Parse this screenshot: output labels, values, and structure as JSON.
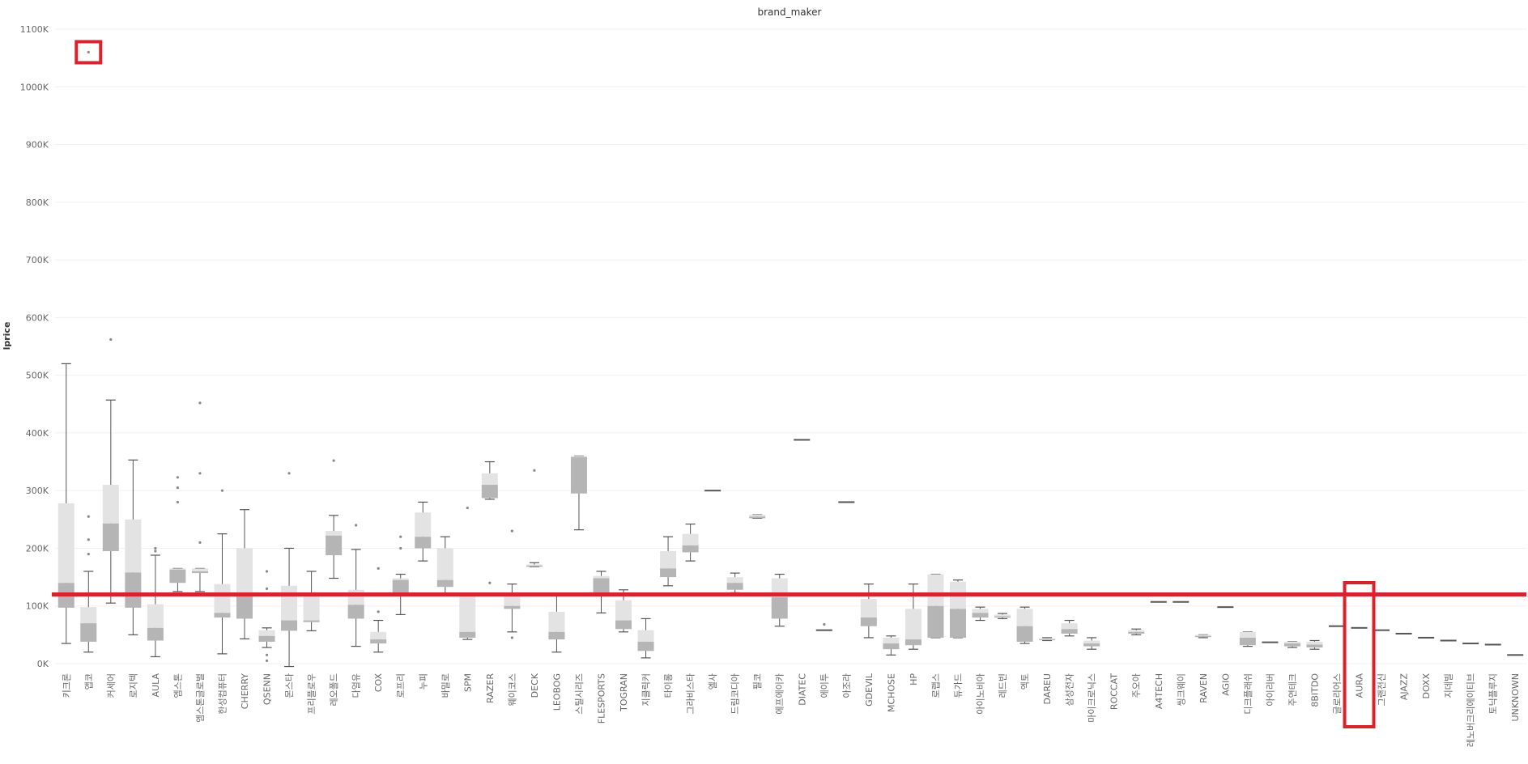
{
  "chart_data": {
    "type": "box",
    "title": "brand_maker",
    "ylabel": "lprice",
    "ylim": [
      0,
      1100000
    ],
    "yticks": [
      0,
      100000,
      200000,
      300000,
      400000,
      500000,
      600000,
      700000,
      800000,
      900000,
      1000000,
      1100000
    ],
    "ytick_labels": [
      "0K",
      "100K",
      "200K",
      "300K",
      "400K",
      "500K",
      "600K",
      "700K",
      "800K",
      "900K",
      "1000K",
      "1100K"
    ],
    "grid": true,
    "reference_line": 120000,
    "highlight_categories": [
      "AURA"
    ],
    "highlight_outlier_value": 1060000,
    "colors": {
      "box_light": "#e3e3e3",
      "box_dark": "#b5b5b5",
      "whisker": "#555555",
      "grid": "#f0f0f0",
      "highlight": "#d6242f",
      "point": "#888888"
    },
    "categories": [
      {
        "name": "키크론",
        "min": 35000,
        "q1": 97000,
        "median": 140000,
        "q3": 278000,
        "max": 520000,
        "outliers": []
      },
      {
        "name": "앱코",
        "min": 20000,
        "q1": 38000,
        "median": 70000,
        "q3": 98000,
        "max": 160000,
        "outliers": [
          190000,
          215000,
          255000,
          1060000
        ]
      },
      {
        "name": "커세어",
        "min": 105000,
        "q1": 195000,
        "median": 243000,
        "q3": 310000,
        "max": 457000,
        "outliers": [
          562000
        ]
      },
      {
        "name": "로지텍",
        "min": 50000,
        "q1": 97000,
        "median": 158000,
        "q3": 250000,
        "max": 353000,
        "outliers": []
      },
      {
        "name": "AULA",
        "min": 12000,
        "q1": 40000,
        "median": 62000,
        "q3": 103000,
        "max": 188000,
        "outliers": [
          195000,
          200000
        ]
      },
      {
        "name": "엠스톤",
        "min": 125000,
        "q1": 140000,
        "median": 163000,
        "q3": 165000,
        "max": 165000,
        "outliers": [
          280000,
          305000,
          323000
        ]
      },
      {
        "name": "엠스톤글로벌",
        "min": 125000,
        "q1": 157000,
        "median": 160000,
        "q3": 165000,
        "max": 165000,
        "outliers": [
          210000,
          330000,
          452000
        ]
      },
      {
        "name": "한성컴퓨터",
        "min": 17000,
        "q1": 80000,
        "median": 88000,
        "q3": 138000,
        "max": 225000,
        "outliers": [
          300000
        ]
      },
      {
        "name": "CHERRY",
        "min": 43000,
        "q1": 78000,
        "median": 118000,
        "q3": 200000,
        "max": 267000,
        "outliers": []
      },
      {
        "name": "QSENN",
        "min": 28000,
        "q1": 38000,
        "median": 48000,
        "q3": 58000,
        "max": 62000,
        "outliers": [
          5000,
          15000,
          130000,
          160000
        ]
      },
      {
        "name": "몬스타",
        "min": -5000,
        "q1": 57000,
        "median": 75000,
        "q3": 135000,
        "max": 200000,
        "outliers": [
          330000
        ]
      },
      {
        "name": "프리플로우",
        "min": 57000,
        "q1": 72000,
        "median": 75000,
        "q3": 120000,
        "max": 160000,
        "outliers": []
      },
      {
        "name": "레오폴드",
        "min": 148000,
        "q1": 188000,
        "median": 222000,
        "q3": 230000,
        "max": 257000,
        "outliers": [
          352000
        ]
      },
      {
        "name": "다얼유",
        "min": 30000,
        "q1": 78000,
        "median": 102000,
        "q3": 128000,
        "max": 198000,
        "outliers": [
          240000
        ]
      },
      {
        "name": "COX",
        "min": 20000,
        "q1": 35000,
        "median": 42000,
        "q3": 55000,
        "max": 75000,
        "outliers": [
          90000,
          165000
        ]
      },
      {
        "name": "로프리",
        "min": 85000,
        "q1": 118000,
        "median": 145000,
        "q3": 148000,
        "max": 155000,
        "outliers": [
          200000,
          220000
        ]
      },
      {
        "name": "누피",
        "min": 178000,
        "q1": 200000,
        "median": 220000,
        "q3": 262000,
        "max": 280000,
        "outliers": []
      },
      {
        "name": "바밀로",
        "min": 120000,
        "q1": 133000,
        "median": 145000,
        "q3": 200000,
        "max": 220000,
        "outliers": []
      },
      {
        "name": "SPM",
        "min": 42000,
        "q1": 45000,
        "median": 55000,
        "q3": 118000,
        "max": 118000,
        "outliers": [
          270000
        ]
      },
      {
        "name": "RAZER",
        "min": 285000,
        "q1": 287000,
        "median": 310000,
        "q3": 330000,
        "max": 350000,
        "outliers": [
          140000
        ]
      },
      {
        "name": "웨이코스",
        "min": 55000,
        "q1": 95000,
        "median": 100000,
        "q3": 120000,
        "max": 138000,
        "outliers": [
          45000,
          230000
        ]
      },
      {
        "name": "DECK",
        "min": 168000,
        "q1": 168000,
        "median": 170000,
        "q3": 172000,
        "max": 175000,
        "outliers": [
          335000
        ]
      },
      {
        "name": "LEOBOG",
        "min": 20000,
        "q1": 42000,
        "median": 55000,
        "q3": 90000,
        "max": 120000,
        "outliers": []
      },
      {
        "name": "스틸시리즈",
        "min": 232000,
        "q1": 295000,
        "median": 358000,
        "q3": 360000,
        "max": 360000,
        "outliers": []
      },
      {
        "name": "FLESPORTS",
        "min": 88000,
        "q1": 120000,
        "median": 148000,
        "q3": 152000,
        "max": 160000,
        "outliers": []
      },
      {
        "name": "TOGRAN",
        "min": 55000,
        "q1": 60000,
        "median": 75000,
        "q3": 110000,
        "max": 128000,
        "outliers": []
      },
      {
        "name": "지클릭커",
        "min": 10000,
        "q1": 22000,
        "median": 38000,
        "q3": 58000,
        "max": 78000,
        "outliers": []
      },
      {
        "name": "타이롱",
        "min": 135000,
        "q1": 150000,
        "median": 165000,
        "q3": 195000,
        "max": 220000,
        "outliers": []
      },
      {
        "name": "그라비스타",
        "min": 178000,
        "q1": 193000,
        "median": 205000,
        "q3": 225000,
        "max": 242000,
        "outliers": []
      },
      {
        "name": "엘사",
        "min": 300000,
        "q1": 300000,
        "median": 300000,
        "q3": 300000,
        "max": 300000,
        "outliers": []
      },
      {
        "name": "드림코디아",
        "min": 123000,
        "q1": 128000,
        "median": 140000,
        "q3": 150000,
        "max": 157000,
        "outliers": []
      },
      {
        "name": "필코",
        "min": 252000,
        "q1": 252000,
        "median": 255000,
        "q3": 258000,
        "max": 258000,
        "outliers": []
      },
      {
        "name": "에프에이카",
        "min": 65000,
        "q1": 78000,
        "median": 115000,
        "q3": 148000,
        "max": 155000,
        "outliers": []
      },
      {
        "name": "DIATEC",
        "min": 388000,
        "q1": 388000,
        "median": 388000,
        "q3": 388000,
        "max": 388000,
        "outliers": []
      },
      {
        "name": "에이투",
        "min": 58000,
        "q1": 58000,
        "median": 58000,
        "q3": 58000,
        "max": 58000,
        "outliers": [
          68000
        ]
      },
      {
        "name": "아조라",
        "min": 280000,
        "q1": 280000,
        "median": 280000,
        "q3": 280000,
        "max": 280000,
        "outliers": []
      },
      {
        "name": "GDEVIL",
        "min": 45000,
        "q1": 65000,
        "median": 80000,
        "q3": 112000,
        "max": 138000,
        "outliers": []
      },
      {
        "name": "MCHOSE",
        "min": 15000,
        "q1": 25000,
        "median": 35000,
        "q3": 45000,
        "max": 48000,
        "outliers": []
      },
      {
        "name": "HP",
        "min": 25000,
        "q1": 32000,
        "median": 42000,
        "q3": 95000,
        "max": 138000,
        "outliers": []
      },
      {
        "name": "로랩스",
        "min": 45000,
        "q1": 45000,
        "median": 100000,
        "q3": 155000,
        "max": 155000,
        "outliers": []
      },
      {
        "name": "듀가드",
        "min": 45000,
        "q1": 45000,
        "median": 95000,
        "q3": 142000,
        "max": 145000,
        "outliers": []
      },
      {
        "name": "아이노비아",
        "min": 75000,
        "q1": 80000,
        "median": 88000,
        "q3": 95000,
        "max": 98000,
        "outliers": []
      },
      {
        "name": "레드빈",
        "min": 78000,
        "q1": 80000,
        "median": 82000,
        "q3": 85000,
        "max": 87000,
        "outliers": []
      },
      {
        "name": "엑토",
        "min": 35000,
        "q1": 38000,
        "median": 65000,
        "q3": 95000,
        "max": 98000,
        "outliers": []
      },
      {
        "name": "DAREU",
        "min": 40000,
        "q1": 41000,
        "median": 42000,
        "q3": 44000,
        "max": 45000,
        "outliers": []
      },
      {
        "name": "삼성전자",
        "min": 48000,
        "q1": 52000,
        "median": 60000,
        "q3": 70000,
        "max": 75000,
        "outliers": []
      },
      {
        "name": "마이크로닉스",
        "min": 25000,
        "q1": 30000,
        "median": 35000,
        "q3": 40000,
        "max": 45000,
        "outliers": []
      },
      {
        "name": "ROCCAT",
        "min": 118000,
        "q1": 118000,
        "median": 118000,
        "q3": 118000,
        "max": 118000,
        "outliers": []
      },
      {
        "name": "주오아",
        "min": 50000,
        "q1": 52000,
        "median": 55000,
        "q3": 58000,
        "max": 60000,
        "outliers": []
      },
      {
        "name": "A4TECH",
        "min": 107000,
        "q1": 107000,
        "median": 107000,
        "q3": 107000,
        "max": 107000,
        "outliers": []
      },
      {
        "name": "씽크웨이",
        "min": 107000,
        "q1": 107000,
        "median": 107000,
        "q3": 107000,
        "max": 107000,
        "outliers": []
      },
      {
        "name": "RAVEN",
        "min": 45000,
        "q1": 46000,
        "median": 48000,
        "q3": 50000,
        "max": 50000,
        "outliers": []
      },
      {
        "name": "AGIO",
        "min": 98000,
        "q1": 98000,
        "median": 98000,
        "q3": 98000,
        "max": 98000,
        "outliers": []
      },
      {
        "name": "디크플래쉬",
        "min": 30000,
        "q1": 32000,
        "median": 45000,
        "q3": 55000,
        "max": 55000,
        "outliers": []
      },
      {
        "name": "아이리버",
        "min": 37000,
        "q1": 37000,
        "median": 37000,
        "q3": 37000,
        "max": 37000,
        "outliers": []
      },
      {
        "name": "주연테크",
        "min": 28000,
        "q1": 30000,
        "median": 35000,
        "q3": 38000,
        "max": 38000,
        "outliers": []
      },
      {
        "name": "8BITDO",
        "min": 25000,
        "q1": 28000,
        "median": 33000,
        "q3": 38000,
        "max": 40000,
        "outliers": []
      },
      {
        "name": "글로리어스",
        "min": 65000,
        "q1": 65000,
        "median": 65000,
        "q3": 65000,
        "max": 65000,
        "outliers": []
      },
      {
        "name": "AURA",
        "min": 62000,
        "q1": 62000,
        "median": 62000,
        "q3": 62000,
        "max": 62000,
        "outliers": []
      },
      {
        "name": "그랜전신",
        "min": 58000,
        "q1": 58000,
        "median": 58000,
        "q3": 58000,
        "max": 58000,
        "outliers": []
      },
      {
        "name": "AJAZZ",
        "min": 52000,
        "q1": 52000,
        "median": 52000,
        "q3": 52000,
        "max": 52000,
        "outliers": []
      },
      {
        "name": "DOXX",
        "min": 45000,
        "q1": 45000,
        "median": 45000,
        "q3": 45000,
        "max": 45000,
        "outliers": []
      },
      {
        "name": "지데빌",
        "min": 40000,
        "q1": 40000,
        "median": 40000,
        "q3": 40000,
        "max": 40000,
        "outliers": []
      },
      {
        "name": "레노버크리에이티브",
        "min": 35000,
        "q1": 35000,
        "median": 35000,
        "q3": 35000,
        "max": 35000,
        "outliers": []
      },
      {
        "name": "토닉플루지",
        "min": 33000,
        "q1": 33000,
        "median": 33000,
        "q3": 33000,
        "max": 33000,
        "outliers": []
      },
      {
        "name": "UNKNOWN",
        "min": 15000,
        "q1": 15000,
        "median": 15000,
        "q3": 15000,
        "max": 15000,
        "outliers": []
      }
    ]
  }
}
